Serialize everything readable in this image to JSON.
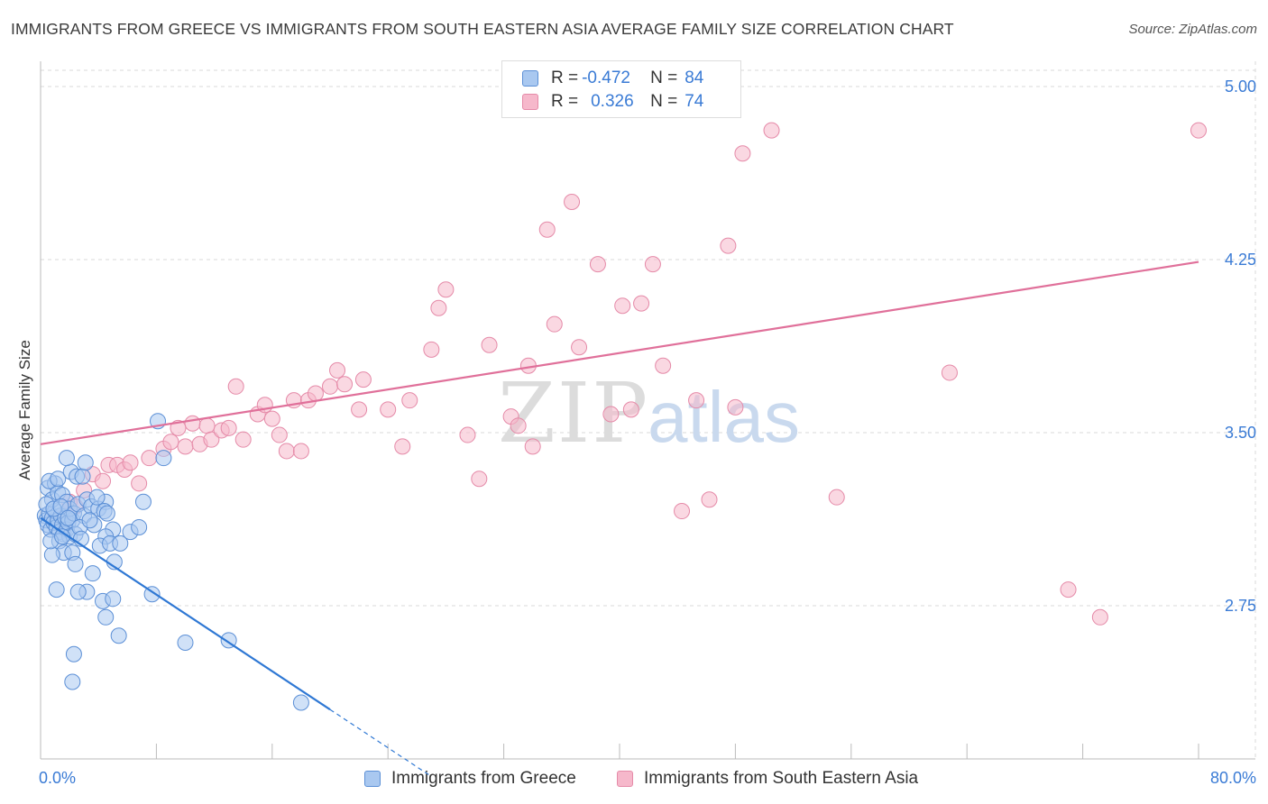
{
  "title": "IMMIGRANTS FROM GREECE VS IMMIGRANTS FROM SOUTH EASTERN ASIA AVERAGE FAMILY SIZE CORRELATION CHART",
  "source": "Source: ZipAtlas.com",
  "watermark": {
    "zip": "ZIP",
    "atlas": "atlas"
  },
  "legend": {
    "greece": {
      "r_label": "R =",
      "r_value": "-0.472",
      "n_label": "N =",
      "n_value": "84"
    },
    "sea": {
      "r_label": "R =",
      "r_value": "0.326",
      "n_label": "N =",
      "n_value": "74"
    }
  },
  "bottom_legend": {
    "greece": "Immigrants from Greece",
    "sea": "Immigrants from South Eastern Asia"
  },
  "colors": {
    "greece_fill": "#a9c8f0",
    "greece_stroke": "#5b8fd6",
    "greece_line": "#2f78d4",
    "sea_fill": "#f6b8cb",
    "sea_stroke": "#e58aa8",
    "sea_line": "#e0709a",
    "tick_text": "#3a7bd5",
    "grid": "#d9d9d9"
  },
  "chart_data": {
    "type": "scatter",
    "xlabel": "",
    "ylabel": "Average Family Size",
    "xlim": [
      0,
      80
    ],
    "ylim": [
      2.0,
      5.1
    ],
    "x_tick_labels": [
      "0.0%",
      "80.0%"
    ],
    "y_ticks": [
      5.0,
      4.25,
      3.5,
      2.75
    ],
    "y_tick_labels": [
      "5.00",
      "4.25",
      "3.50",
      "2.75"
    ],
    "grid": true,
    "legend_placement": "top-center",
    "series": [
      {
        "name": "Immigrants from Greece",
        "trend": {
          "x": [
            0,
            20
          ],
          "y": [
            3.13,
            2.3
          ]
        },
        "trend_extension": {
          "x": [
            20,
            27
          ],
          "y": [
            2.3,
            2.01
          ]
        },
        "points": [
          [
            0.3,
            3.14
          ],
          [
            0.4,
            3.12
          ],
          [
            0.5,
            3.1
          ],
          [
            0.6,
            3.15
          ],
          [
            0.7,
            3.08
          ],
          [
            0.8,
            3.13
          ],
          [
            0.9,
            3.11
          ],
          [
            1.0,
            3.16
          ],
          [
            1.1,
            3.09
          ],
          [
            1.2,
            3.12
          ],
          [
            1.3,
            3.07
          ],
          [
            1.4,
            3.14
          ],
          [
            1.5,
            3.1
          ],
          [
            1.6,
            3.06
          ],
          [
            1.7,
            3.13
          ],
          [
            1.8,
            3.08
          ],
          [
            1.9,
            3.11
          ],
          [
            2.0,
            3.05
          ],
          [
            2.2,
            3.12
          ],
          [
            2.4,
            3.06
          ],
          [
            0.5,
            3.26
          ],
          [
            0.8,
            3.21
          ],
          [
            1.0,
            3.28
          ],
          [
            1.2,
            3.24
          ],
          [
            1.5,
            3.23
          ],
          [
            1.8,
            3.2
          ],
          [
            2.0,
            3.17
          ],
          [
            2.3,
            3.15
          ],
          [
            2.6,
            3.19
          ],
          [
            3.0,
            3.14
          ],
          [
            3.2,
            3.21
          ],
          [
            3.5,
            3.18
          ],
          [
            4.0,
            3.17
          ],
          [
            4.5,
            3.2
          ],
          [
            5.0,
            3.08
          ],
          [
            0.6,
            3.29
          ],
          [
            1.2,
            3.3
          ],
          [
            2.1,
            3.33
          ],
          [
            2.5,
            3.31
          ],
          [
            2.9,
            3.31
          ],
          [
            3.1,
            3.37
          ],
          [
            1.8,
            3.39
          ],
          [
            4.4,
            3.16
          ],
          [
            4.6,
            3.15
          ],
          [
            4.5,
            3.05
          ],
          [
            3.7,
            3.1
          ],
          [
            4.1,
            3.01
          ],
          [
            4.8,
            3.02
          ],
          [
            5.5,
            3.02
          ],
          [
            6.2,
            3.07
          ],
          [
            6.8,
            3.09
          ],
          [
            7.1,
            3.2
          ],
          [
            1.3,
            3.03
          ],
          [
            1.6,
            2.98
          ],
          [
            2.2,
            2.98
          ],
          [
            0.8,
            2.97
          ],
          [
            2.4,
            2.93
          ],
          [
            3.6,
            2.89
          ],
          [
            3.2,
            2.81
          ],
          [
            2.6,
            2.81
          ],
          [
            1.1,
            2.82
          ],
          [
            5.1,
            2.94
          ],
          [
            7.7,
            2.8
          ],
          [
            4.3,
            2.77
          ],
          [
            5.0,
            2.78
          ],
          [
            4.5,
            2.7
          ],
          [
            5.4,
            2.62
          ],
          [
            2.3,
            2.54
          ],
          [
            2.2,
            2.42
          ],
          [
            10.0,
            2.59
          ],
          [
            13.0,
            2.6
          ],
          [
            18.0,
            2.33
          ],
          [
            8.5,
            3.39
          ],
          [
            8.1,
            3.55
          ],
          [
            0.4,
            3.19
          ],
          [
            0.9,
            3.17
          ],
          [
            1.4,
            3.18
          ],
          [
            1.9,
            3.13
          ],
          [
            2.7,
            3.09
          ],
          [
            3.4,
            3.12
          ],
          [
            0.7,
            3.03
          ],
          [
            1.5,
            3.05
          ],
          [
            2.8,
            3.04
          ],
          [
            3.9,
            3.22
          ]
        ]
      },
      {
        "name": "Immigrants from South Eastern Asia",
        "trend": {
          "x": [
            0,
            80
          ],
          "y": [
            3.45,
            4.24
          ]
        },
        "points": [
          [
            1.5,
            3.13
          ],
          [
            2.0,
            3.2
          ],
          [
            2.4,
            3.18
          ],
          [
            3.0,
            3.25
          ],
          [
            3.6,
            3.32
          ],
          [
            4.3,
            3.29
          ],
          [
            4.7,
            3.36
          ],
          [
            5.3,
            3.36
          ],
          [
            5.8,
            3.34
          ],
          [
            6.2,
            3.37
          ],
          [
            6.8,
            3.28
          ],
          [
            7.5,
            3.39
          ],
          [
            8.5,
            3.43
          ],
          [
            9.0,
            3.46
          ],
          [
            9.5,
            3.52
          ],
          [
            10.0,
            3.44
          ],
          [
            10.5,
            3.54
          ],
          [
            11.0,
            3.45
          ],
          [
            11.5,
            3.53
          ],
          [
            11.8,
            3.47
          ],
          [
            12.5,
            3.51
          ],
          [
            13.0,
            3.52
          ],
          [
            13.5,
            3.7
          ],
          [
            14.0,
            3.47
          ],
          [
            15.0,
            3.58
          ],
          [
            15.5,
            3.62
          ],
          [
            16.0,
            3.56
          ],
          [
            16.5,
            3.49
          ],
          [
            17.0,
            3.42
          ],
          [
            17.5,
            3.64
          ],
          [
            18.0,
            3.42
          ],
          [
            18.5,
            3.64
          ],
          [
            19.0,
            3.67
          ],
          [
            20.0,
            3.7
          ],
          [
            20.5,
            3.77
          ],
          [
            21.0,
            3.71
          ],
          [
            22.0,
            3.6
          ],
          [
            22.3,
            3.73
          ],
          [
            24.0,
            3.6
          ],
          [
            25.0,
            3.44
          ],
          [
            25.5,
            3.64
          ],
          [
            27.0,
            3.86
          ],
          [
            27.5,
            4.04
          ],
          [
            28.0,
            4.12
          ],
          [
            29.5,
            3.49
          ],
          [
            30.3,
            3.3
          ],
          [
            31.0,
            3.88
          ],
          [
            32.5,
            3.57
          ],
          [
            33.0,
            3.53
          ],
          [
            33.7,
            3.79
          ],
          [
            34.0,
            3.44
          ],
          [
            35.0,
            4.38
          ],
          [
            35.5,
            3.97
          ],
          [
            36.7,
            4.5
          ],
          [
            37.2,
            3.87
          ],
          [
            38.5,
            4.23
          ],
          [
            39.4,
            3.58
          ],
          [
            40.2,
            4.05
          ],
          [
            40.8,
            3.6
          ],
          [
            41.5,
            4.06
          ],
          [
            42.3,
            4.23
          ],
          [
            43.0,
            3.79
          ],
          [
            44.3,
            3.16
          ],
          [
            45.3,
            3.64
          ],
          [
            46.2,
            3.21
          ],
          [
            47.5,
            4.31
          ],
          [
            48.0,
            3.61
          ],
          [
            48.5,
            4.71
          ],
          [
            50.5,
            4.81
          ],
          [
            55.0,
            3.22
          ],
          [
            62.8,
            3.76
          ],
          [
            71.0,
            2.82
          ],
          [
            73.2,
            2.7
          ],
          [
            80.0,
            4.81
          ]
        ]
      }
    ]
  }
}
